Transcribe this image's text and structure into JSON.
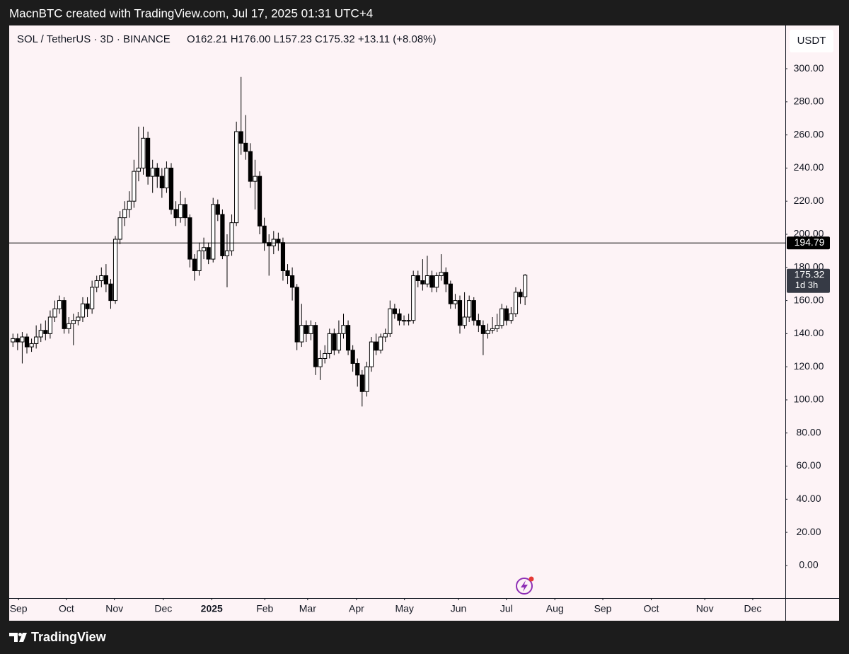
{
  "header": "MacnBTC created with TradingView.com, Jul 17, 2025 01:31 UTC+4",
  "footer": "TradingView",
  "chart_data": {
    "type": "candlestick",
    "title": "SOL / TetherUS · 3D · BINANCE",
    "ohlc_label": "O162.21  H176.00  L157.23  C175.32  +13.11 (+8.08%)",
    "currency": "USDT",
    "countdown": "1d 3h",
    "up_color": "#ffffff",
    "down_color": "#000000",
    "background": "#fdf3f6",
    "grid": false,
    "hline": 194.79,
    "xlim": [
      -0.8,
      165.9
    ],
    "xticks": [
      {
        "value": 1.2,
        "label": "Sep"
      },
      {
        "value": 11.5,
        "label": "Oct"
      },
      {
        "value": 21.8,
        "label": "Nov"
      },
      {
        "value": 32.3,
        "label": "Dec"
      },
      {
        "value": 42.7,
        "label": "2025"
      },
      {
        "value": 54.1,
        "label": "Feb"
      },
      {
        "value": 63.3,
        "label": "Mar"
      },
      {
        "value": 73.8,
        "label": "Apr"
      },
      {
        "value": 84.1,
        "label": "May"
      },
      {
        "value": 95.7,
        "label": "Jun"
      },
      {
        "value": 106.0,
        "label": "Jul"
      },
      {
        "value": 116.4,
        "label": "Aug"
      },
      {
        "value": 126.7,
        "label": "Sep"
      },
      {
        "value": 137.1,
        "label": "Oct"
      },
      {
        "value": 148.6,
        "label": "Nov"
      },
      {
        "value": 158.9,
        "label": "Dec"
      }
    ],
    "ylim": [
      -19.7,
      326.1
    ],
    "yticks": [
      {
        "value": 0,
        "label": "0.00"
      },
      {
        "value": 20,
        "label": "20.00"
      },
      {
        "value": 40,
        "label": "40.00"
      },
      {
        "value": 60,
        "label": "60.00"
      },
      {
        "value": 80,
        "label": "80.00"
      },
      {
        "value": 100,
        "label": "100.00"
      },
      {
        "value": 120,
        "label": "120.00"
      },
      {
        "value": 140,
        "label": "140.00"
      },
      {
        "value": 160,
        "label": "160.00"
      },
      {
        "value": 180,
        "label": "180.00"
      },
      {
        "value": 200,
        "label": "200.00"
      },
      {
        "value": 220,
        "label": "220.00"
      },
      {
        "value": 240,
        "label": "240.00"
      },
      {
        "value": 260,
        "label": "260.00"
      },
      {
        "value": 280,
        "label": "280.00"
      },
      {
        "value": 300,
        "label": "300.00"
      }
    ],
    "open": [
      135,
      137,
      135,
      138,
      132,
      134,
      138,
      142,
      140,
      150,
      155,
      160,
      143,
      146,
      148,
      150,
      158,
      155,
      168,
      172,
      175,
      170,
      160,
      197,
      210,
      215,
      220,
      238,
      240,
      258,
      235,
      240,
      235,
      228,
      240,
      215,
      210,
      218,
      210,
      185,
      178,
      190,
      192,
      185,
      218,
      212,
      187,
      190,
      207,
      262,
      255,
      250,
      232,
      235,
      205,
      195,
      193,
      197,
      195,
      178,
      175,
      168,
      135,
      145,
      140,
      145,
      120,
      125,
      128,
      140,
      130,
      140,
      145,
      130,
      122,
      115,
      105,
      120,
      135,
      130,
      138,
      140,
      155,
      152,
      148,
      148,
      148,
      175,
      172,
      170,
      175,
      168,
      175,
      177,
      170,
      158,
      160,
      145,
      150,
      160,
      148,
      145,
      140,
      142,
      143,
      145,
      155,
      148,
      152,
      165,
      162.21
    ],
    "high": [
      140,
      140,
      141,
      140,
      137,
      145,
      146,
      148,
      154,
      160,
      163,
      162,
      150,
      152,
      153,
      162,
      162,
      172,
      175,
      180,
      182,
      173,
      199,
      214,
      220,
      226,
      245,
      265,
      265,
      262,
      245,
      243,
      240,
      244,
      243,
      220,
      226,
      222,
      212,
      188,
      195,
      198,
      195,
      222,
      221,
      215,
      200,
      212,
      268,
      295,
      272,
      255,
      245,
      238,
      210,
      200,
      202,
      201,
      198,
      182,
      180,
      170,
      158,
      148,
      148,
      147,
      130,
      133,
      143,
      143,
      148,
      152,
      148,
      133,
      125,
      118,
      123,
      138,
      140,
      140,
      143,
      160,
      158,
      155,
      151,
      152,
      178,
      178,
      185,
      187,
      178,
      177,
      188,
      180,
      172,
      164,
      163,
      165,
      163,
      162,
      152,
      148,
      146,
      150,
      152,
      158,
      157,
      156,
      168,
      167,
      176
    ],
    "low": [
      132,
      130,
      122,
      128,
      129,
      131,
      135,
      136,
      137,
      147,
      152,
      140,
      140,
      133,
      145,
      147,
      150,
      152,
      165,
      168,
      165,
      155,
      158,
      194,
      205,
      210,
      216,
      232,
      236,
      230,
      225,
      228,
      222,
      225,
      212,
      205,
      207,
      205,
      180,
      172,
      175,
      185,
      182,
      183,
      208,
      185,
      168,
      187,
      205,
      248,
      245,
      228,
      215,
      200,
      190,
      175,
      188,
      190,
      172,
      170,
      160,
      130,
      132,
      135,
      136,
      115,
      112,
      122,
      125,
      127,
      128,
      137,
      127,
      117,
      108,
      96,
      102,
      117,
      127,
      128,
      135,
      138,
      149,
      145,
      145,
      145,
      146,
      168,
      166,
      168,
      165,
      165,
      172,
      165,
      155,
      155,
      140,
      143,
      147,
      145,
      141,
      127,
      137,
      140,
      141,
      143,
      145,
      146,
      150,
      158,
      157.23
    ],
    "close": [
      137,
      135,
      138,
      132,
      134,
      138,
      142,
      140,
      150,
      155,
      160,
      143,
      146,
      148,
      150,
      158,
      155,
      168,
      172,
      175,
      170,
      160,
      197,
      210,
      215,
      220,
      238,
      240,
      258,
      235,
      240,
      235,
      228,
      240,
      215,
      210,
      218,
      210,
      185,
      178,
      190,
      192,
      185,
      218,
      212,
      187,
      190,
      207,
      262,
      255,
      250,
      232,
      235,
      205,
      195,
      193,
      197,
      195,
      178,
      175,
      168,
      135,
      145,
      140,
      145,
      120,
      125,
      128,
      140,
      130,
      140,
      145,
      130,
      122,
      115,
      105,
      120,
      135,
      130,
      138,
      140,
      155,
      152,
      148,
      148,
      148,
      175,
      172,
      170,
      175,
      168,
      175,
      177,
      170,
      158,
      160,
      145,
      150,
      160,
      148,
      145,
      140,
      142,
      143,
      145,
      155,
      148,
      152,
      165,
      162.21,
      175.32
    ]
  }
}
